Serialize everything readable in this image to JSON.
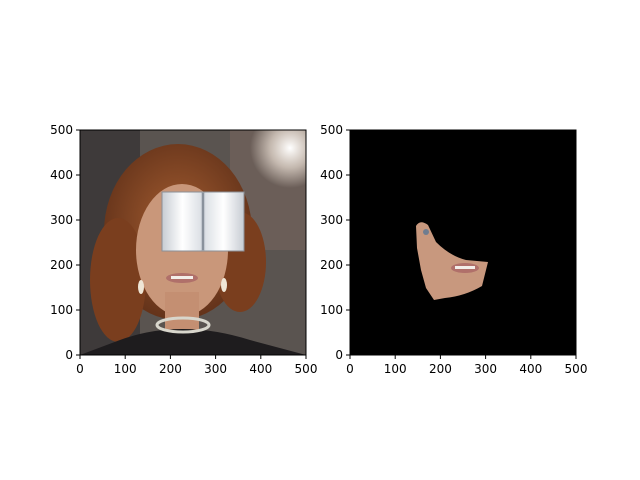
{
  "figure": {
    "background": "#ffffff",
    "axes_color": "#000000"
  },
  "chart_data": [
    {
      "type": "image",
      "title": "",
      "xlabel": "",
      "ylabel": "",
      "xlim": [
        0,
        500
      ],
      "ylim": [
        500,
        0
      ],
      "x_ticks": [
        "0",
        "100",
        "200",
        "300",
        "400",
        "500"
      ],
      "y_ticks": [
        "0",
        "100",
        "200",
        "300",
        "400",
        "500"
      ],
      "grid": false,
      "content": "photo of a smiling woman with auburn curly hair; the eye region is covered by a white open-book overlay",
      "colors": {
        "background": "#5a5450",
        "hair": "#8a4a26",
        "skin": "#c9977a",
        "overlay": "#f2f4f6",
        "clothing": "#1e1c1e"
      }
    },
    {
      "type": "image",
      "title": "",
      "xlabel": "",
      "ylabel": "",
      "xlim": [
        0,
        500
      ],
      "ylim": [
        500,
        0
      ],
      "x_ticks": [
        "0",
        "100",
        "200",
        "300",
        "400",
        "500"
      ],
      "y_ticks": [
        "0",
        "100",
        "200",
        "300",
        "400",
        "500"
      ],
      "grid": false,
      "content": "segmentation mask on black; only the visible lower face skin region (cheek, mouth, chin) is kept",
      "colors": {
        "background": "#000000",
        "skin": "#c8987e",
        "lips": "#b0706a"
      }
    }
  ]
}
